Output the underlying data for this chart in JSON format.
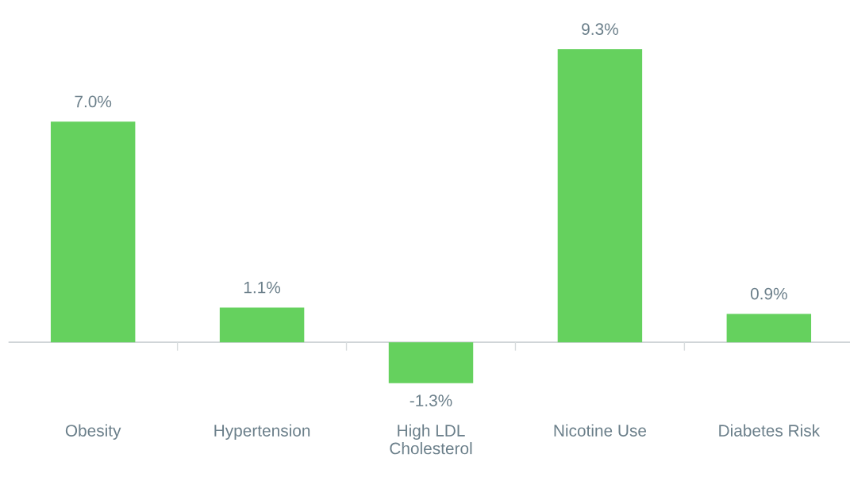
{
  "chart_data": {
    "type": "bar",
    "categories": [
      "Obesity",
      "Hypertension",
      "High LDL\nCholesterol",
      "Nicotine Use",
      "Diabetes Risk"
    ],
    "values": [
      7.0,
      1.1,
      -1.3,
      9.3,
      0.9
    ],
    "value_labels": [
      "7.0%",
      "1.1%",
      "-1.3%",
      "9.3%",
      "0.9%"
    ],
    "color": "#65d15e",
    "grid": false,
    "legend": false
  }
}
